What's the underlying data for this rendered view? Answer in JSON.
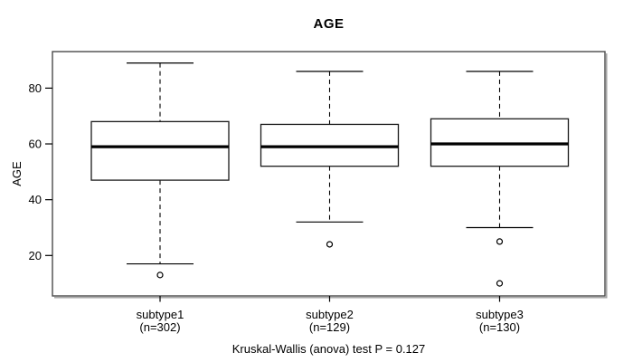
{
  "chart_data": {
    "type": "boxplot",
    "title": "AGE",
    "ylabel": "AGE",
    "xlabel": "",
    "ylim": [
      5.5,
      93.1
    ],
    "y_ticks": [
      20,
      40,
      60,
      80
    ],
    "grid": false,
    "legend": false,
    "groups": [
      {
        "label": "subtype1",
        "sublabel": "(n=302)",
        "n": 302,
        "whisker_low": 17,
        "q1": 47,
        "median": 59,
        "q3": 68,
        "whisker_high": 89,
        "outliers": [
          13
        ]
      },
      {
        "label": "subtype2",
        "sublabel": "(n=129)",
        "n": 129,
        "whisker_low": 32,
        "q1": 52,
        "median": 59,
        "q3": 67,
        "whisker_high": 86,
        "outliers": [
          24
        ]
      },
      {
        "label": "subtype3",
        "sublabel": "(n=130)",
        "n": 130,
        "whisker_low": 30,
        "q1": 52,
        "median": 60,
        "q3": 69,
        "whisker_high": 86,
        "outliers": [
          25,
          10
        ]
      }
    ],
    "annotation": "Kruskal-Wallis (anova) test P = 0.127",
    "colors": {
      "box_stroke": "#1a1a1a",
      "median": "#000000",
      "whisker": "#000000",
      "plot_border": "#4a4a4a",
      "border_shadow": "#9c9c9c",
      "background": "#ffffff",
      "text": "#000000"
    }
  }
}
